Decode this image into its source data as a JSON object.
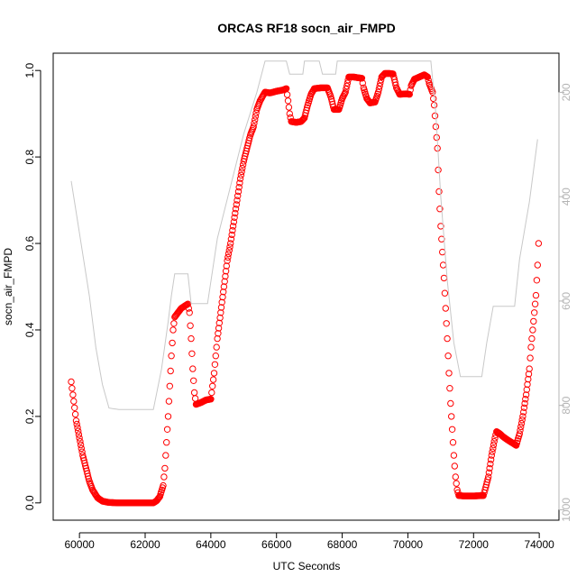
{
  "chart_data": {
    "type": "scatter",
    "title": "ORCAS RF18 socn_air_FMPD",
    "xlabel": "UTC Seconds",
    "ylabel": "socn_air_FMPD",
    "xlim": [
      59200,
      74600
    ],
    "ylim": [
      -0.04,
      1.04
    ],
    "x_ticks": [
      60000,
      62000,
      64000,
      66000,
      68000,
      70000,
      72000,
      74000
    ],
    "y_ticks": [
      0.0,
      0.2,
      0.4,
      0.6,
      0.8,
      1.0
    ],
    "y_tick_labels": [
      "0.0",
      "0.2",
      "0.4",
      "0.6",
      "0.8",
      "1.0"
    ],
    "right_axis": {
      "ylim": [
        1020,
        125
      ],
      "ticks": [
        200,
        400,
        600,
        800,
        1000
      ],
      "tick_labels": [
        "200",
        "400",
        "600",
        "800",
        "1000"
      ],
      "color": "#b4b4b4"
    },
    "series": [
      {
        "style": "points",
        "color": "#ff0000",
        "points": [
          [
            59750,
            0.28
          ],
          [
            59800,
            0.25
          ],
          [
            59850,
            0.22
          ],
          [
            59900,
            0.19
          ],
          [
            60000,
            0.15
          ],
          [
            60100,
            0.11
          ],
          [
            60200,
            0.08
          ],
          [
            60300,
            0.05
          ],
          [
            60400,
            0.03
          ],
          [
            60550,
            0.012
          ],
          [
            60700,
            0.004
          ],
          [
            60900,
            0.001
          ],
          [
            61200,
            0.0
          ],
          [
            61600,
            0.0
          ],
          [
            62000,
            0.0
          ],
          [
            62250,
            0.0
          ],
          [
            62350,
            0.005
          ],
          [
            62450,
            0.015
          ],
          [
            62550,
            0.04
          ],
          [
            62600,
            0.08
          ],
          [
            62650,
            0.14
          ],
          [
            62700,
            0.2
          ],
          [
            62750,
            0.27
          ],
          [
            62800,
            0.34
          ],
          [
            62850,
            0.4
          ],
          [
            62900,
            0.43
          ],
          [
            63000,
            0.44
          ],
          [
            63100,
            0.45
          ],
          [
            63300,
            0.46
          ],
          [
            63350,
            0.44
          ],
          [
            63400,
            0.38
          ],
          [
            63450,
            0.31
          ],
          [
            63500,
            0.255
          ],
          [
            63550,
            0.228
          ],
          [
            63700,
            0.232
          ],
          [
            63850,
            0.238
          ],
          [
            64000,
            0.24
          ],
          [
            64050,
            0.27
          ],
          [
            64100,
            0.3
          ],
          [
            64150,
            0.34
          ],
          [
            64200,
            0.38
          ],
          [
            64300,
            0.44
          ],
          [
            64400,
            0.5
          ],
          [
            64500,
            0.56
          ],
          [
            64600,
            0.6
          ],
          [
            64700,
            0.65
          ],
          [
            64800,
            0.7
          ],
          [
            64900,
            0.75
          ],
          [
            65000,
            0.79
          ],
          [
            65100,
            0.82
          ],
          [
            65200,
            0.85
          ],
          [
            65300,
            0.87
          ],
          [
            65400,
            0.91
          ],
          [
            65500,
            0.93
          ],
          [
            65650,
            0.95
          ],
          [
            65800,
            0.948
          ],
          [
            66000,
            0.952
          ],
          [
            66200,
            0.955
          ],
          [
            66300,
            0.958
          ],
          [
            66350,
            0.93
          ],
          [
            66400,
            0.9
          ],
          [
            66450,
            0.882
          ],
          [
            66600,
            0.88
          ],
          [
            66750,
            0.882
          ],
          [
            66850,
            0.89
          ],
          [
            66950,
            0.92
          ],
          [
            67050,
            0.945
          ],
          [
            67150,
            0.958
          ],
          [
            67350,
            0.96
          ],
          [
            67550,
            0.96
          ],
          [
            67650,
            0.94
          ],
          [
            67750,
            0.91
          ],
          [
            67900,
            0.91
          ],
          [
            68000,
            0.935
          ],
          [
            68100,
            0.95
          ],
          [
            68200,
            0.985
          ],
          [
            68350,
            0.985
          ],
          [
            68500,
            0.983
          ],
          [
            68600,
            0.982
          ],
          [
            68650,
            0.96
          ],
          [
            68750,
            0.935
          ],
          [
            68850,
            0.925
          ],
          [
            69000,
            0.927
          ],
          [
            69100,
            0.95
          ],
          [
            69200,
            0.985
          ],
          [
            69300,
            0.993
          ],
          [
            69450,
            0.993
          ],
          [
            69550,
            0.992
          ],
          [
            69650,
            0.96
          ],
          [
            69750,
            0.945
          ],
          [
            69950,
            0.946
          ],
          [
            70050,
            0.945
          ],
          [
            70100,
            0.965
          ],
          [
            70200,
            0.98
          ],
          [
            70350,
            0.985
          ],
          [
            70500,
            0.99
          ],
          [
            70600,
            0.985
          ],
          [
            70650,
            0.97
          ],
          [
            70750,
            0.95
          ],
          [
            70800,
            0.92
          ],
          [
            70850,
            0.87
          ],
          [
            70900,
            0.82
          ],
          [
            70950,
            0.72
          ],
          [
            71000,
            0.64
          ],
          [
            71050,
            0.58
          ],
          [
            71100,
            0.52
          ],
          [
            71150,
            0.45
          ],
          [
            71200,
            0.38
          ],
          [
            71250,
            0.3
          ],
          [
            71300,
            0.23
          ],
          [
            71350,
            0.17
          ],
          [
            71400,
            0.11
          ],
          [
            71450,
            0.06
          ],
          [
            71500,
            0.03
          ],
          [
            71550,
            0.017
          ],
          [
            71700,
            0.016
          ],
          [
            72000,
            0.016
          ],
          [
            72300,
            0.017
          ],
          [
            72350,
            0.03
          ],
          [
            72450,
            0.06
          ],
          [
            72550,
            0.11
          ],
          [
            72650,
            0.15
          ],
          [
            72700,
            0.165
          ],
          [
            72800,
            0.16
          ],
          [
            72900,
            0.153
          ],
          [
            73050,
            0.145
          ],
          [
            73200,
            0.138
          ],
          [
            73300,
            0.133
          ],
          [
            73400,
            0.16
          ],
          [
            73500,
            0.2
          ],
          [
            73600,
            0.25
          ],
          [
            73700,
            0.31
          ],
          [
            73750,
            0.36
          ],
          [
            73800,
            0.4
          ],
          [
            73850,
            0.44
          ],
          [
            73900,
            0.48
          ],
          [
            73950,
            0.55
          ],
          [
            73980,
            0.6
          ]
        ]
      },
      {
        "style": "line",
        "color": "#c8c8c8",
        "axis": "right",
        "points": [
          [
            59750,
            370
          ],
          [
            59900,
            430
          ],
          [
            60100,
            510
          ],
          [
            60300,
            590
          ],
          [
            60500,
            690
          ],
          [
            60700,
            760
          ],
          [
            60900,
            805
          ],
          [
            61200,
            808
          ],
          [
            61600,
            808
          ],
          [
            62000,
            808
          ],
          [
            62250,
            808
          ],
          [
            62500,
            730
          ],
          [
            62700,
            640
          ],
          [
            62800,
            590
          ],
          [
            62900,
            548
          ],
          [
            63300,
            548
          ],
          [
            63400,
            605
          ],
          [
            63600,
            605
          ],
          [
            63900,
            605
          ],
          [
            64200,
            480
          ],
          [
            64600,
            380
          ],
          [
            65000,
            280
          ],
          [
            65400,
            200
          ],
          [
            65650,
            140
          ],
          [
            66000,
            140
          ],
          [
            66300,
            140
          ],
          [
            66400,
            165
          ],
          [
            66800,
            165
          ],
          [
            66850,
            140
          ],
          [
            67300,
            140
          ],
          [
            67400,
            165
          ],
          [
            67800,
            165
          ],
          [
            67850,
            140
          ],
          [
            70700,
            140
          ],
          [
            70850,
            240
          ],
          [
            71000,
            400
          ],
          [
            71200,
            560
          ],
          [
            71400,
            680
          ],
          [
            71600,
            745
          ],
          [
            72000,
            745
          ],
          [
            72250,
            745
          ],
          [
            72400,
            680
          ],
          [
            72600,
            610
          ],
          [
            73000,
            610
          ],
          [
            73250,
            610
          ],
          [
            73400,
            520
          ],
          [
            73700,
            410
          ],
          [
            73950,
            290
          ]
        ]
      }
    ]
  }
}
